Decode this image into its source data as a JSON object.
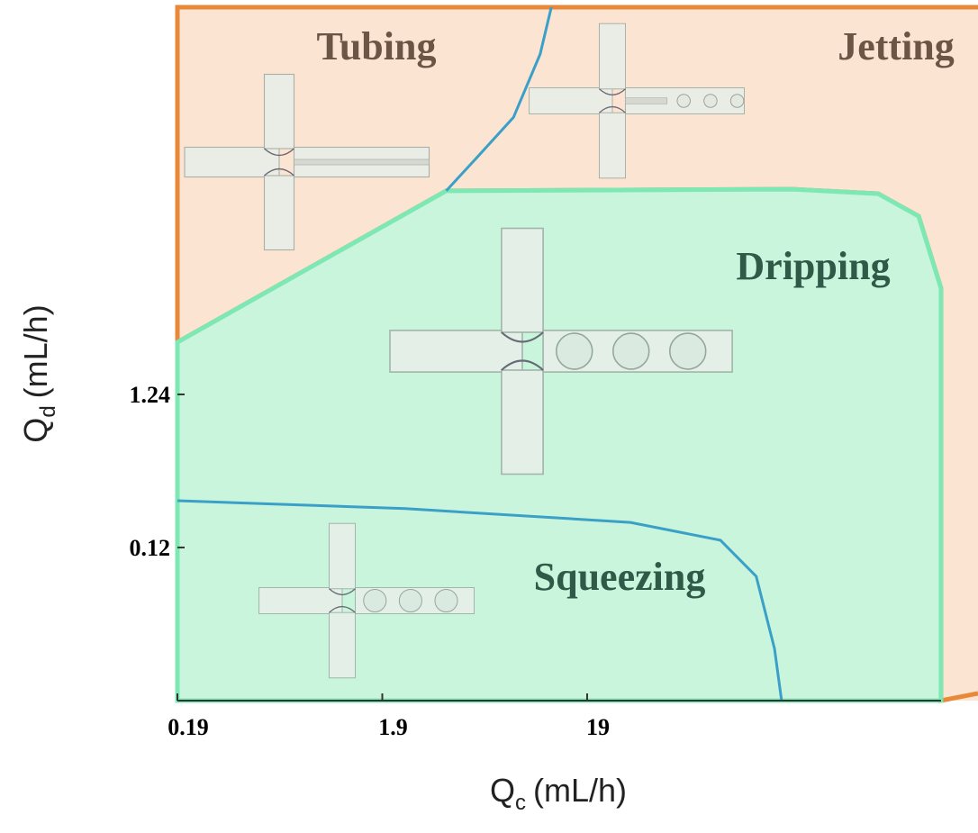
{
  "chart_data": {
    "type": "phase-diagram",
    "x_log": true,
    "y_log": true,
    "xlim": [
      0.19,
      1537
    ],
    "ylim": [
      0.0116,
      456
    ],
    "xticks": [
      0.19,
      1.9,
      19
    ],
    "yticks": [
      0.12,
      1.24
    ],
    "xlabel": "Q",
    "xlabel_sub": "c",
    "xlabel_unit": "(mL/h)",
    "ylabel": "Q",
    "ylabel_sub": "d",
    "ylabel_unit": "(mL/h)",
    "background": "#fbe4d2",
    "frame_color": "#e8893a",
    "regions": [
      {
        "name": "Tubing",
        "color": "#6b5646"
      },
      {
        "name": "Jetting",
        "color": "#6b5646"
      },
      {
        "name": "Dripping",
        "color": "#2f5a48"
      },
      {
        "name": "Squeezing",
        "color": "#2f5a48"
      }
    ],
    "boundaries": [
      {
        "color": "#7ee8b4",
        "fill": "#c6f5dc",
        "x": [
          0.19,
          3.9,
          191,
          500,
          789,
          1014,
          1014,
          0.19
        ],
        "y": [
          2.75,
          27.7,
          28.4,
          26.5,
          18.8,
          6.27,
          0.0116,
          0.0116
        ]
      },
      {
        "color": "#3aa0c8",
        "x": [
          12.7,
          11.2,
          8.3,
          5.5,
          3.9
        ],
        "y": [
          456,
          223,
          85,
          46,
          27.7
        ]
      },
      {
        "color": "#3aa0c8",
        "x": [
          0.19,
          2.46,
          30.9,
          85,
          127,
          156,
          169
        ],
        "y": [
          0.245,
          0.217,
          0.176,
          0.134,
          0.0773,
          0.0257,
          0.0116
        ]
      }
    ]
  }
}
